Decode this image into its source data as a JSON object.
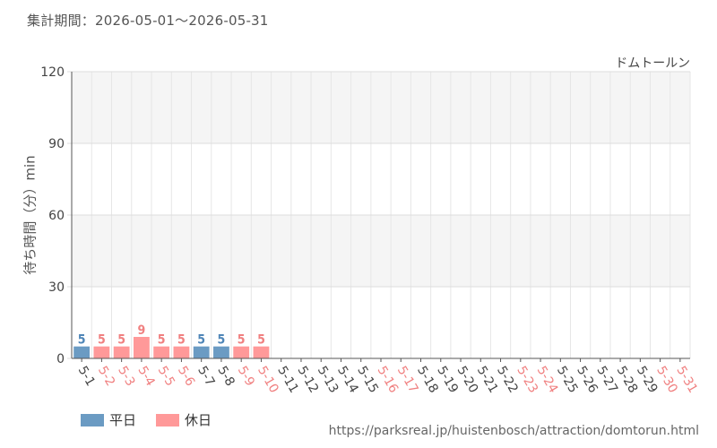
{
  "period": "集計期間：2026-05-01～2026-05-31",
  "source": "https://parksreal.jp/huistenbosch/attraction/domtorun.html",
  "legend": {
    "weekday": "平日",
    "holiday": "休日"
  },
  "colors": {
    "weekday_bar": "#6b9bc3",
    "holiday_bar": "#ff9999",
    "weekday_text": "#4f86b8",
    "holiday_text": "#f08080",
    "weekday_tick": "#444444",
    "holiday_tick": "#f08080"
  },
  "chart_data": {
    "type": "bar",
    "title": "ドムトールン",
    "xlabel": "",
    "ylabel": "待ち時間（分）min",
    "ylim": [
      0,
      120
    ],
    "yticks": [
      0,
      30,
      60,
      90,
      120
    ],
    "grid": true,
    "legend_position": "bottom-left",
    "categories": [
      "5-1",
      "5-2",
      "5-3",
      "5-4",
      "5-5",
      "5-6",
      "5-7",
      "5-8",
      "5-9",
      "5-10",
      "5-11",
      "5-12",
      "5-13",
      "5-14",
      "5-15",
      "5-16",
      "5-17",
      "5-18",
      "5-19",
      "5-20",
      "5-21",
      "5-22",
      "5-23",
      "5-24",
      "5-25",
      "5-26",
      "5-27",
      "5-28",
      "5-29",
      "5-30",
      "5-31"
    ],
    "day_type": [
      "weekday",
      "holiday",
      "holiday",
      "holiday",
      "holiday",
      "holiday",
      "weekday",
      "weekday",
      "holiday",
      "holiday",
      "weekday",
      "weekday",
      "weekday",
      "weekday",
      "weekday",
      "holiday",
      "holiday",
      "weekday",
      "weekday",
      "weekday",
      "weekday",
      "weekday",
      "holiday",
      "holiday",
      "weekday",
      "weekday",
      "weekday",
      "weekday",
      "weekday",
      "holiday",
      "holiday"
    ],
    "values": [
      5,
      5,
      5,
      9,
      5,
      5,
      5,
      5,
      5,
      5,
      null,
      null,
      null,
      null,
      null,
      null,
      null,
      null,
      null,
      null,
      null,
      null,
      null,
      null,
      null,
      null,
      null,
      null,
      null,
      null,
      null
    ]
  }
}
